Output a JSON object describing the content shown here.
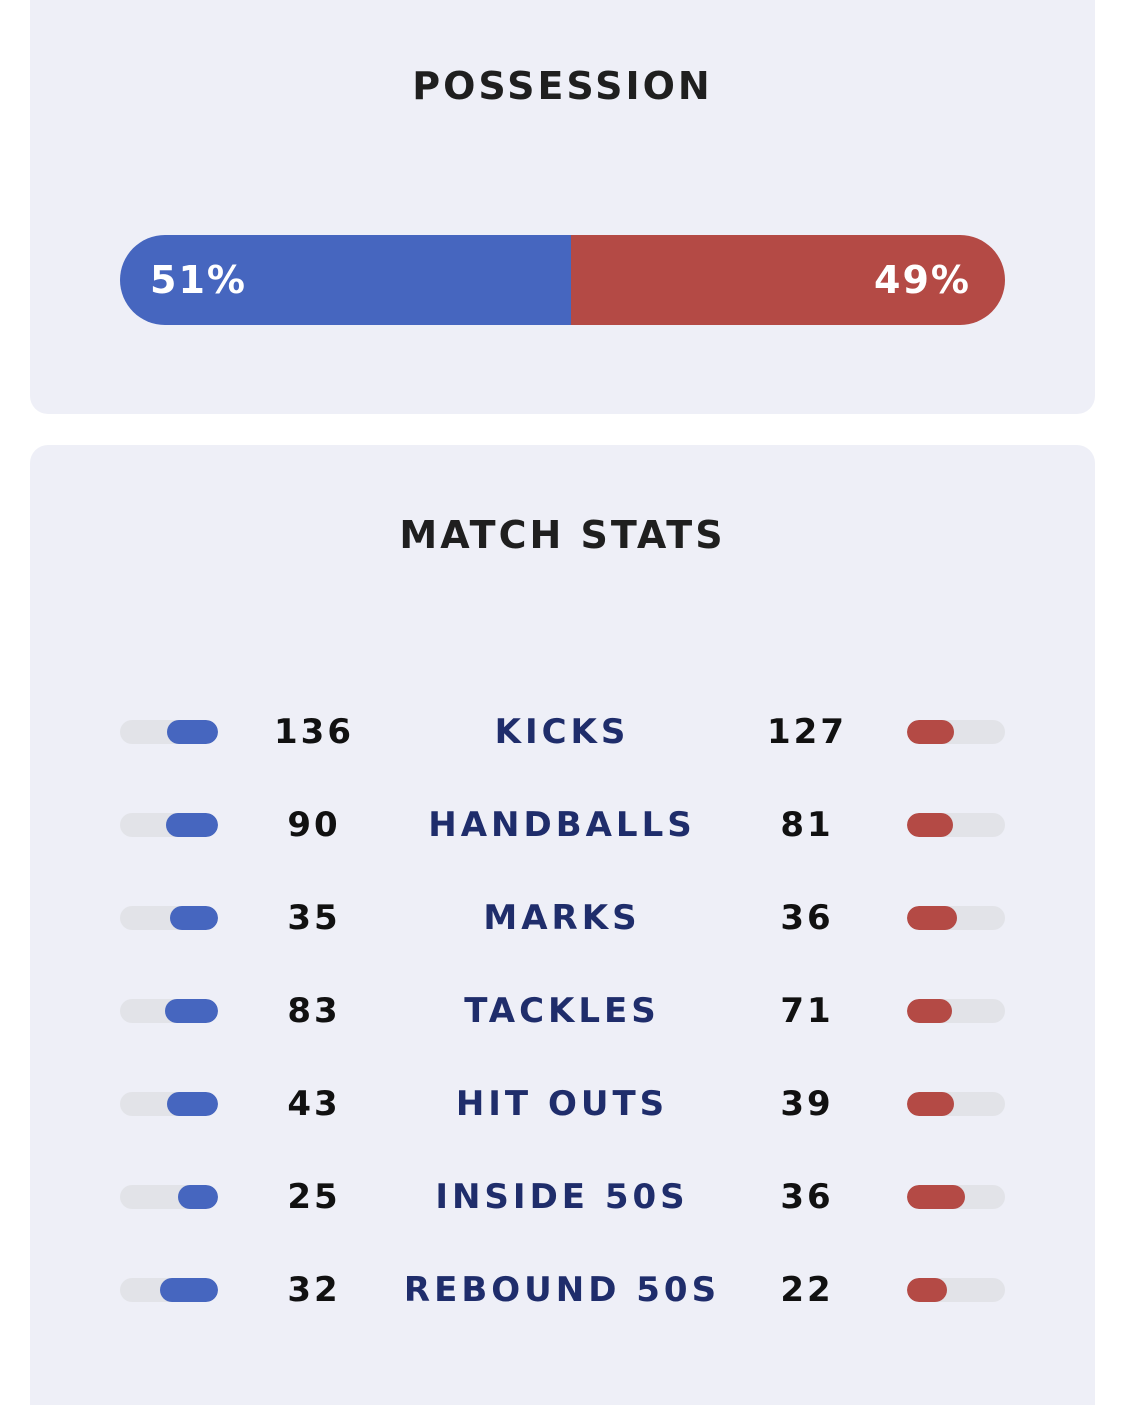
{
  "possession": {
    "title": "POSSESSION",
    "home_label": "51%",
    "away_label": "49%",
    "home_pct": 51,
    "away_pct": 49
  },
  "match_stats": {
    "title": "MATCH STATS",
    "rows": [
      {
        "label": "KICKS",
        "home": "136",
        "away": "127"
      },
      {
        "label": "HANDBALLS",
        "home": "90",
        "away": "81"
      },
      {
        "label": "MARKS",
        "home": "35",
        "away": "36"
      },
      {
        "label": "TACKLES",
        "home": "83",
        "away": "71"
      },
      {
        "label": "HIT OUTS",
        "home": "43",
        "away": "39"
      },
      {
        "label": "INSIDE 50S",
        "home": "25",
        "away": "36"
      },
      {
        "label": "REBOUND 50S",
        "home": "32",
        "away": "22"
      }
    ]
  },
  "colors": {
    "home": "#4666bf",
    "away": "#b44a45",
    "card_bg": "#eeeff7",
    "track": "#e2e3e8",
    "label_text": "#1f2d6b"
  }
}
